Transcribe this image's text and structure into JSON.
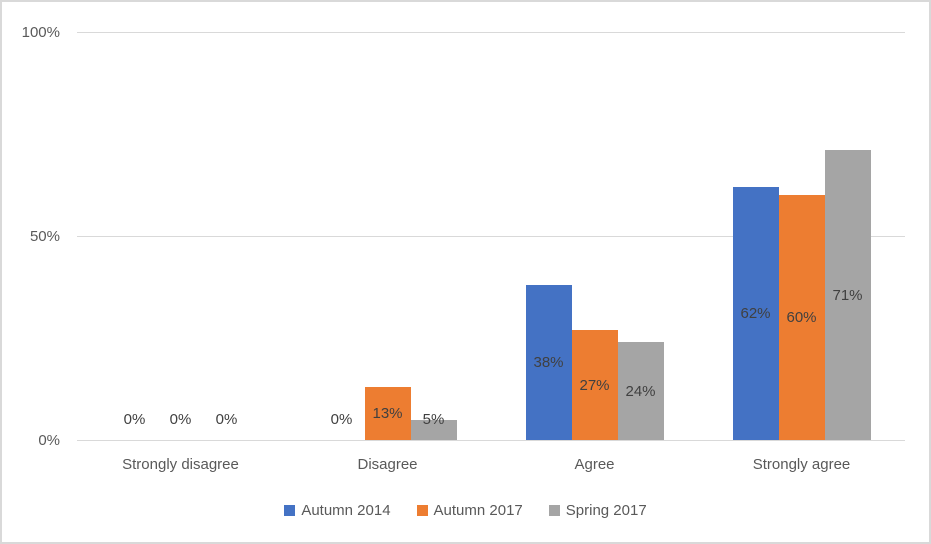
{
  "chart_data": {
    "type": "bar",
    "title": "",
    "categories": [
      "Strongly disagree",
      "Disagree",
      "Agree",
      "Strongly agree"
    ],
    "series": [
      {
        "name": "Autumn 2014",
        "color": "#4472C4",
        "values": [
          0,
          0,
          38,
          62
        ],
        "labels": [
          "0%",
          "0%",
          "38%",
          "62%"
        ]
      },
      {
        "name": "Autumn 2017",
        "color": "#ED7D31",
        "values": [
          0,
          13,
          27,
          60
        ],
        "labels": [
          "0%",
          "13%",
          "27%",
          "60%"
        ]
      },
      {
        "name": "Spring 2017",
        "color": "#A5A5A5",
        "values": [
          0,
          5,
          24,
          71
        ],
        "labels": [
          "0%",
          "5%",
          "24%",
          "71%"
        ]
      }
    ],
    "y_axis": {
      "ticks": [
        {
          "label": "0%",
          "value": 0
        },
        {
          "label": "50%",
          "value": 50
        },
        {
          "label": "100%",
          "value": 100
        }
      ],
      "ylim": [
        0,
        100
      ]
    },
    "grid": true,
    "legend": {
      "position": "bottom",
      "entries": [
        "Autumn 2014",
        "Autumn 2017",
        "Spring 2017"
      ]
    },
    "colors": {
      "gridline": "#d9d9d9",
      "axis_line": "#d9d9d9",
      "frame_border": "#d9d9d9",
      "tick_label_text": "#595959",
      "data_label_text": "#404040"
    }
  }
}
